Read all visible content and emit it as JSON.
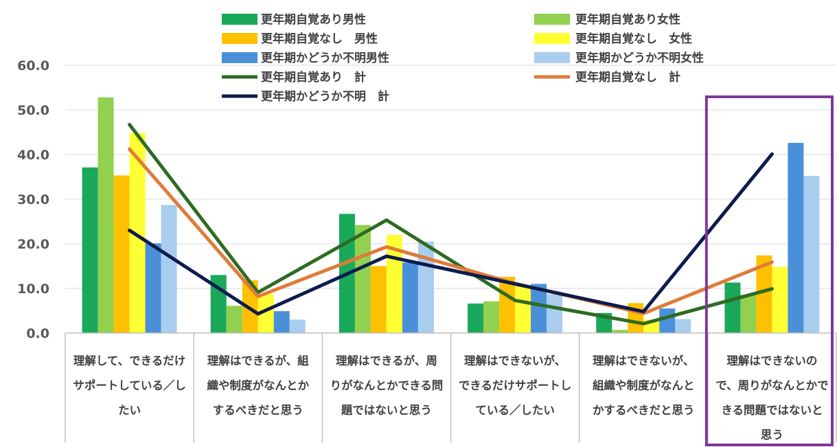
{
  "chart_data": {
    "type": "bar",
    "ylim": [
      0,
      60
    ],
    "yticks": [
      "0.0",
      "10.0",
      "20.0",
      "30.0",
      "40.0",
      "50.0",
      "60.0"
    ],
    "grid": true,
    "legend_position": "top",
    "categories": [
      [
        "理解して、できるだけ",
        "サポートしている／し",
        "たい"
      ],
      [
        "理解はできるが、組",
        "織や制度がなんとか",
        "するべきだと思う"
      ],
      [
        "理解はできるが、周",
        "りがなんとかできる問",
        "題ではないと思う"
      ],
      [
        "理解はできないが、",
        "できるだけサポートし",
        "ている／したい"
      ],
      [
        "理解はできないが、",
        "組織や制度がなんと",
        "かするべきだと思う"
      ],
      [
        "理解はできないの",
        "で、周りがなんとかで",
        "きる問題ではないと",
        "思う"
      ]
    ],
    "bar_series": [
      {
        "name": "更年期自覚あり男性",
        "color": "#1aa85a",
        "values": [
          37.1,
          13.0,
          26.7,
          6.6,
          4.5,
          11.3
        ]
      },
      {
        "name": "更年期自覚あり女性",
        "color": "#92d050",
        "values": [
          52.8,
          6.1,
          24.2,
          7.1,
          0.7,
          8.6
        ]
      },
      {
        "name": "更年期自覚なし　男性",
        "color": "#ffc000",
        "values": [
          35.3,
          11.8,
          15.0,
          12.6,
          6.7,
          17.4
        ]
      },
      {
        "name": "更年期自覚なし　女性",
        "color": "#ffff33",
        "values": [
          44.8,
          8.7,
          22.0,
          10.5,
          3.0,
          14.8
        ]
      },
      {
        "name": "更年期かどうか不明男性",
        "color": "#4a90d9",
        "values": [
          20.1,
          4.9,
          15.8,
          11.0,
          5.5,
          42.6
        ]
      },
      {
        "name": "更年期かどうか不明女性",
        "color": "#a9cdee",
        "values": [
          28.7,
          3.0,
          20.5,
          8.7,
          3.1,
          35.2
        ]
      }
    ],
    "line_series": [
      {
        "name": "更年期自覚あり　計",
        "color": "#2e6b23",
        "values": [
          46.7,
          9.1,
          25.3,
          7.3,
          2.1,
          9.9
        ]
      },
      {
        "name": "更年期自覚なし　計",
        "color": "#e07b39",
        "values": [
          41.2,
          8.2,
          19.3,
          11.1,
          4.4,
          15.9
        ]
      },
      {
        "name": "更年期かどうか不明　計",
        "color": "#0d1b4d",
        "values": [
          23.0,
          4.3,
          17.2,
          11.0,
          4.8,
          40.1
        ]
      }
    ],
    "highlight_category_index": 5,
    "highlight_color": "#7b3a96"
  }
}
